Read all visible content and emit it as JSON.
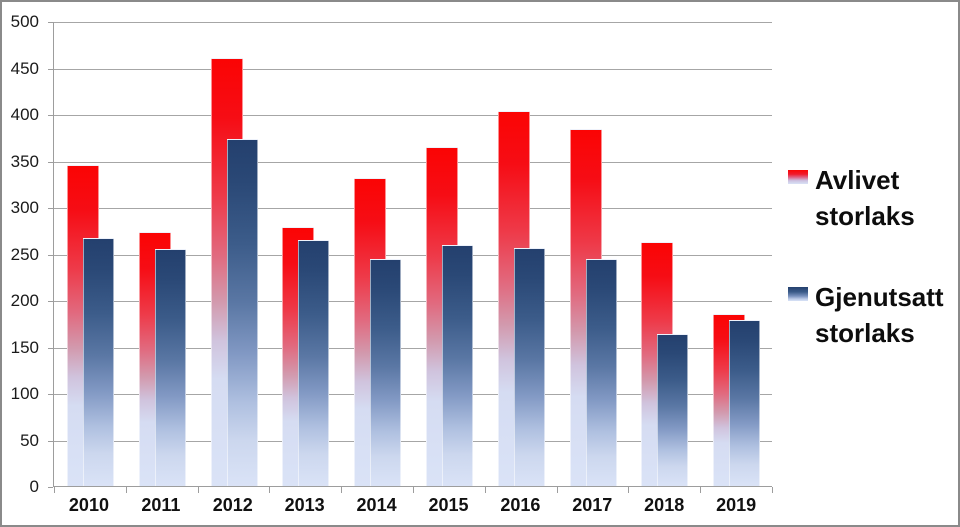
{
  "chart_data": {
    "type": "bar",
    "title": "",
    "categories": [
      "2010",
      "2011",
      "2012",
      "2013",
      "2014",
      "2015",
      "2016",
      "2017",
      "2018",
      "2019"
    ],
    "series": [
      {
        "name": "Avlivet storlaks",
        "color": "#fb0404",
        "values": [
          345,
          273,
          460,
          278,
          331,
          364,
          403,
          384,
          262,
          185
        ]
      },
      {
        "name": "Gjenutsatt storlaks",
        "color": "#24406e",
        "values": [
          267,
          255,
          373,
          265,
          244,
          259,
          256,
          244,
          163,
          179
        ]
      }
    ],
    "xlabel": "",
    "ylabel": "",
    "ylim": [
      0,
      500
    ],
    "yticks": [
      500,
      450,
      400,
      350,
      300,
      250,
      200,
      150,
      100,
      50,
      0
    ],
    "grid": "horizontal",
    "legend_position": "right",
    "gradient_bottom_color": "#dae3f7",
    "gridline_color": "#a6a6a6",
    "axis_color": "#9d9d9d",
    "frame_border_color": "#8a8a8a"
  }
}
